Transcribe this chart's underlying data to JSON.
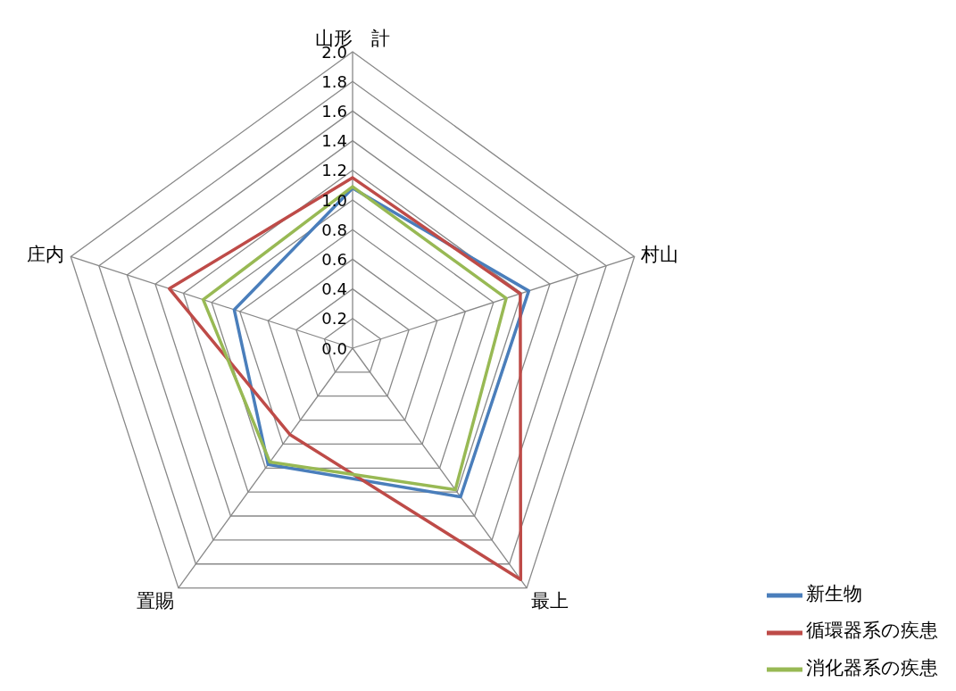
{
  "chart_data": {
    "type": "radar",
    "categories": [
      "山形　計",
      "村山",
      "最上",
      "置賜",
      "庄内"
    ],
    "series": [
      {
        "name": "新生物",
        "color": "#4a7ebb",
        "values": [
          1.08,
          1.25,
          1.24,
          0.97,
          0.84
        ]
      },
      {
        "name": "循環器系の疾患",
        "color": "#be4b48",
        "values": [
          1.15,
          1.19,
          1.93,
          0.72,
          1.3
        ]
      },
      {
        "name": "消化器系の疾患",
        "color": "#98b954",
        "values": [
          1.09,
          1.09,
          1.18,
          0.95,
          1.06
        ]
      }
    ],
    "ylim": [
      0,
      2
    ],
    "yticks": [
      {
        "value": 0,
        "label": "0.0"
      },
      {
        "value": 0.2,
        "label": "0.2"
      },
      {
        "value": 0.4,
        "label": "0.4"
      },
      {
        "value": 0.6,
        "label": "0.6"
      },
      {
        "value": 0.8,
        "label": "0.8"
      },
      {
        "value": 1,
        "label": "1.0"
      },
      {
        "value": 1.2,
        "label": "1.2"
      },
      {
        "value": 1.4,
        "label": "1.4"
      },
      {
        "value": 1.6,
        "label": "1.6"
      },
      {
        "value": 1.8,
        "label": "1.8"
      },
      {
        "value": 2,
        "label": "2.0"
      }
    ],
    "grid": true,
    "legend": "bottom right",
    "marker": "none",
    "line_style": "solid"
  }
}
